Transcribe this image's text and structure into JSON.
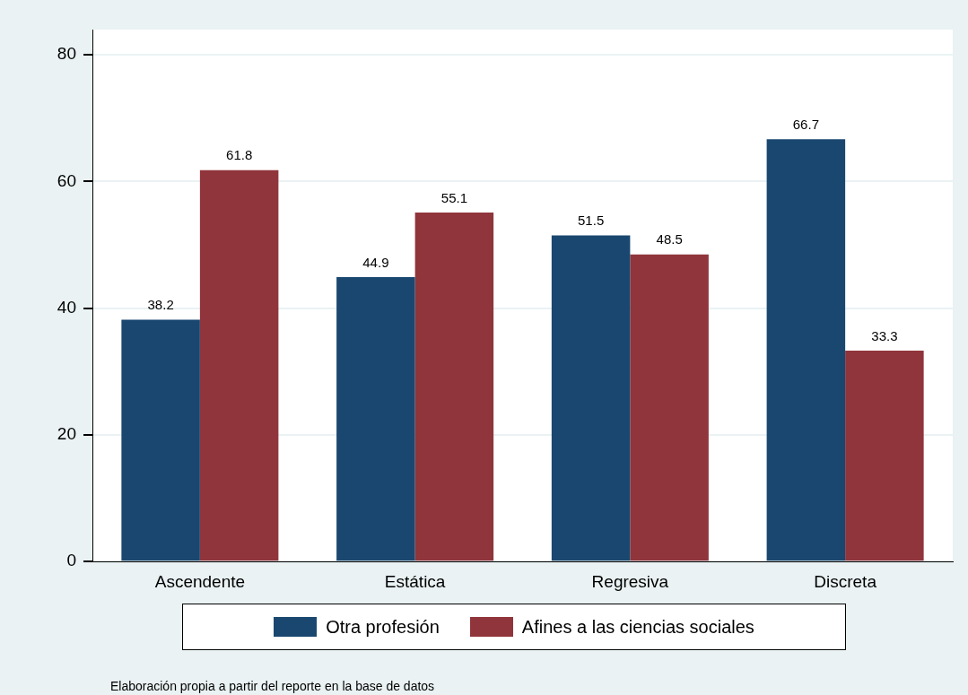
{
  "chart_data": {
    "type": "bar",
    "categories": [
      "Ascendente",
      "Estática",
      "Regresiva",
      "Discreta"
    ],
    "series": [
      {
        "name": "Otra profesión",
        "color": "#1a476f",
        "values": [
          38.2,
          44.9,
          51.5,
          66.7
        ]
      },
      {
        "name": "Afines a las ciencias sociales",
        "color": "#90353b",
        "values": [
          61.8,
          55.1,
          48.5,
          33.3
        ]
      }
    ],
    "ylim": [
      0,
      84
    ],
    "yticks": [
      0,
      20,
      40,
      60,
      80
    ],
    "grid": "y",
    "legend": "bottom",
    "data_labels": true,
    "annotations": [
      "Elaboración propia a partir del reporte en la base de datos"
    ]
  }
}
